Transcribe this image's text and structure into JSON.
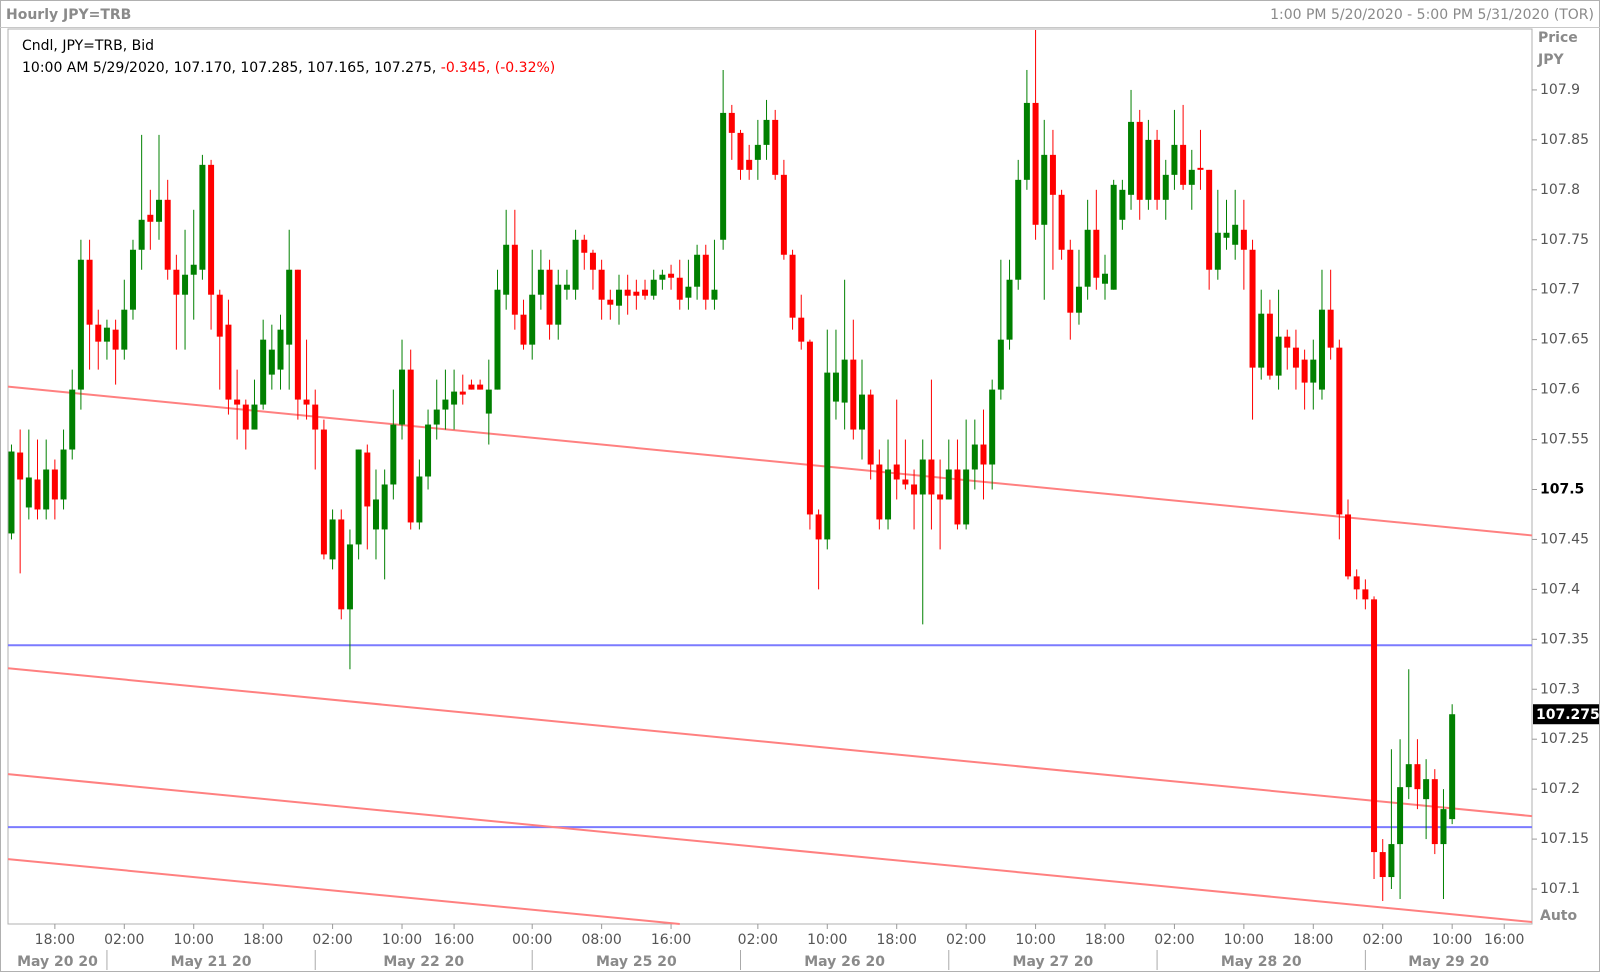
{
  "chart_data": {
    "type": "candlestick",
    "title": "Hourly JPY=TRB",
    "range_label": "1:00 PM 5/20/2020 - 5:00 PM 5/31/2020 (TOR)",
    "legend": {
      "line1": "Cndl, JPY=TRB, Bid",
      "line2": "10:00 AM 5/29/2020, 107.170, 107.285, 107.165, 107.275,",
      "change": "-0.345, (-0.32%)"
    },
    "y_label": "Price",
    "y_unit": "JPY",
    "scale_mode": "Auto",
    "up_color": "#008000",
    "down_color": "#ff0000",
    "open": [
      107.456,
      107.537,
      107.482,
      107.51,
      107.48,
      107.52,
      107.49,
      107.54,
      107.6,
      107.73,
      107.665,
      107.648,
      107.66,
      107.64,
      107.68,
      107.74,
      107.775,
      107.768,
      107.79,
      107.72,
      107.695,
      107.715,
      107.72,
      107.825,
      107.695,
      107.665,
      107.59,
      107.585,
      107.56,
      107.585,
      107.615,
      107.62,
      107.645,
      107.72,
      107.59,
      107.585,
      107.56,
      107.43,
      107.47,
      107.38,
      107.445,
      107.537,
      107.46,
      107.46,
      107.505,
      107.565,
      107.62,
      107.467,
      107.513,
      107.565,
      107.58,
      107.585,
      107.598,
      107.605,
      107.605,
      107.576,
      107.6,
      107.695,
      107.745,
      107.675,
      107.645,
      107.695,
      107.72,
      107.665,
      107.7,
      107.7,
      107.75,
      107.737,
      107.72,
      107.69,
      107.684,
      107.7,
      107.698,
      107.7,
      107.694,
      107.71,
      107.716,
      107.712,
      107.692,
      107.703,
      107.735,
      107.69,
      107.75,
      107.877,
      107.857,
      107.83,
      107.83,
      107.845,
      107.87,
      107.815,
      107.735,
      107.672,
      107.648,
      107.475,
      107.45,
      107.588,
      107.587,
      107.63,
      107.56,
      107.595,
      107.525,
      107.47,
      107.525,
      107.51,
      107.505,
      107.495,
      107.53,
      107.495,
      107.49,
      107.52,
      107.465,
      107.52,
      107.545,
      107.525,
      107.6,
      107.65,
      107.71,
      107.81,
      107.887,
      107.765,
      107.835,
      107.795,
      107.74,
      107.677,
      107.703,
      107.76,
      107.706,
      107.7,
      107.77,
      107.795,
      107.868,
      107.79,
      107.85,
      107.79,
      107.815,
      107.845,
      107.805,
      107.822,
      107.82,
      107.72,
      107.752,
      107.745,
      107.76,
      107.74,
      107.622,
      107.676,
      107.614,
      107.653,
      107.642,
      107.63,
      107.607,
      107.6,
      107.68,
      107.642,
      107.475,
      107.413,
      107.4,
      107.39,
      107.137,
      107.112,
      107.145,
      107.202,
      107.225,
      107.19,
      107.21,
      107.145,
      107.17
    ],
    "high": [
      107.545,
      107.56,
      107.56,
      107.55,
      107.55,
      107.53,
      107.56,
      107.62,
      107.75,
      107.75,
      107.68,
      107.67,
      107.67,
      107.71,
      107.75,
      107.855,
      107.8,
      107.855,
      107.81,
      107.735,
      107.76,
      107.78,
      107.835,
      107.83,
      107.7,
      107.69,
      107.62,
      107.59,
      107.61,
      107.67,
      107.665,
      107.675,
      107.76,
      107.72,
      107.65,
      107.6,
      107.57,
      107.48,
      107.48,
      107.46,
      107.54,
      107.545,
      107.52,
      107.52,
      107.6,
      107.65,
      107.64,
      107.53,
      107.58,
      107.61,
      107.62,
      107.62,
      107.615,
      107.61,
      107.61,
      107.63,
      107.72,
      107.78,
      107.78,
      107.69,
      107.74,
      107.74,
      107.73,
      107.72,
      107.72,
      107.76,
      107.755,
      107.74,
      107.73,
      107.7,
      107.715,
      107.715,
      107.71,
      107.71,
      107.72,
      107.72,
      107.725,
      107.73,
      107.73,
      107.745,
      107.745,
      107.75,
      107.92,
      107.885,
      107.86,
      107.845,
      107.87,
      107.89,
      107.88,
      107.83,
      107.74,
      107.695,
      107.65,
      107.48,
      107.66,
      107.66,
      107.71,
      107.67,
      107.63,
      107.6,
      107.54,
      107.55,
      107.59,
      107.55,
      107.52,
      107.55,
      107.61,
      107.53,
      107.55,
      107.55,
      107.57,
      107.57,
      107.58,
      107.61,
      107.73,
      107.73,
      107.83,
      107.92,
      107.96,
      107.87,
      107.86,
      107.8,
      107.75,
      107.74,
      107.79,
      107.8,
      107.735,
      107.81,
      107.81,
      107.9,
      107.88,
      107.87,
      107.86,
      107.83,
      107.88,
      107.885,
      107.84,
      107.86,
      107.82,
      107.8,
      107.79,
      107.8,
      107.79,
      107.75,
      107.7,
      107.69,
      107.7,
      107.66,
      107.66,
      107.64,
      107.65,
      107.72,
      107.72,
      107.65,
      107.49,
      107.42,
      107.41,
      107.393,
      107.15,
      107.24,
      107.25,
      107.32,
      107.25,
      107.23,
      107.22,
      107.2,
      107.285
    ],
    "low": [
      107.45,
      107.416,
      107.47,
      107.47,
      107.47,
      107.47,
      107.48,
      107.53,
      107.58,
      107.62,
      107.62,
      107.63,
      107.605,
      107.63,
      107.67,
      107.72,
      107.74,
      107.75,
      107.71,
      107.64,
      107.64,
      107.67,
      107.71,
      107.66,
      107.6,
      107.575,
      107.55,
      107.54,
      107.56,
      107.58,
      107.6,
      107.6,
      107.6,
      107.57,
      107.57,
      107.52,
      107.43,
      107.42,
      107.37,
      107.32,
      107.43,
      107.44,
      107.43,
      107.41,
      107.49,
      107.55,
      107.46,
      107.46,
      107.5,
      107.55,
      107.56,
      107.56,
      107.585,
      107.6,
      107.6,
      107.545,
      107.6,
      107.68,
      107.66,
      107.64,
      107.63,
      107.68,
      107.65,
      107.65,
      107.69,
      107.69,
      107.72,
      107.7,
      107.67,
      107.67,
      107.665,
      107.675,
      107.68,
      107.69,
      107.69,
      107.7,
      107.7,
      107.68,
      107.68,
      107.69,
      107.68,
      107.68,
      107.74,
      107.83,
      107.81,
      107.81,
      107.81,
      107.83,
      107.81,
      107.73,
      107.66,
      107.64,
      107.46,
      107.4,
      107.44,
      107.57,
      107.56,
      107.55,
      107.53,
      107.51,
      107.46,
      107.46,
      107.49,
      107.5,
      107.46,
      107.365,
      107.46,
      107.44,
      107.49,
      107.46,
      107.46,
      107.5,
      107.49,
      107.5,
      107.59,
      107.64,
      107.7,
      107.8,
      107.75,
      107.69,
      107.72,
      107.73,
      107.65,
      107.665,
      107.69,
      107.7,
      107.69,
      107.7,
      107.76,
      107.78,
      107.77,
      107.78,
      107.78,
      107.77,
      107.8,
      107.8,
      107.78,
      107.8,
      107.7,
      107.71,
      107.74,
      107.73,
      107.7,
      107.57,
      107.61,
      107.61,
      107.6,
      107.62,
      107.6,
      107.58,
      107.58,
      107.59,
      107.63,
      107.45,
      107.41,
      107.39,
      107.38,
      107.11,
      107.088,
      107.1,
      107.09,
      107.19,
      107.18,
      107.15,
      107.135,
      107.09,
      107.165
    ],
    "close": [
      107.538,
      107.51,
      107.512,
      107.48,
      107.52,
      107.49,
      107.54,
      107.6,
      107.73,
      107.665,
      107.648,
      107.662,
      107.64,
      107.68,
      107.74,
      107.77,
      107.768,
      107.79,
      107.72,
      107.695,
      107.715,
      107.725,
      107.825,
      107.695,
      107.653,
      107.59,
      107.585,
      107.56,
      107.585,
      107.65,
      107.64,
      107.66,
      107.72,
      107.59,
      107.585,
      107.56,
      107.435,
      107.47,
      107.38,
      107.445,
      107.54,
      107.483,
      107.49,
      107.505,
      107.565,
      107.62,
      107.467,
      107.513,
      107.565,
      107.58,
      107.59,
      107.598,
      107.595,
      107.6,
      107.6,
      107.6,
      107.7,
      107.745,
      107.675,
      107.645,
      107.695,
      107.72,
      107.665,
      107.705,
      107.705,
      107.75,
      107.737,
      107.72,
      107.69,
      107.685,
      107.7,
      107.694,
      107.694,
      107.694,
      107.71,
      107.715,
      107.712,
      107.69,
      107.703,
      107.735,
      107.69,
      107.7,
      107.877,
      107.857,
      107.82,
      107.82,
      107.845,
      107.87,
      107.815,
      107.735,
      107.672,
      107.648,
      107.475,
      107.45,
      107.617,
      107.617,
      107.63,
      107.56,
      107.595,
      107.525,
      107.47,
      107.52,
      107.51,
      107.505,
      107.495,
      107.53,
      107.495,
      107.49,
      107.52,
      107.465,
      107.52,
      107.545,
      107.525,
      107.6,
      107.65,
      107.71,
      107.81,
      107.887,
      107.765,
      107.835,
      107.795,
      107.74,
      107.677,
      107.703,
      107.76,
      107.712,
      107.716,
      107.805,
      107.8,
      107.868,
      107.79,
      107.85,
      107.79,
      107.815,
      107.845,
      107.805,
      107.82,
      107.82,
      107.72,
      107.757,
      107.757,
      107.765,
      107.74,
      107.622,
      107.676,
      107.614,
      107.653,
      107.642,
      107.622,
      107.607,
      107.63,
      107.68,
      107.642,
      107.475,
      107.413,
      107.4,
      107.39,
      107.137,
      107.112,
      107.145,
      107.202,
      107.225,
      107.2,
      107.21,
      107.145,
      107.18,
      107.275
    ],
    "xlim": [
      -0.4,
      175.2
    ],
    "xticks": [
      {
        "value": 5,
        "label": "18:00"
      },
      {
        "value": 13,
        "label": "02:00"
      },
      {
        "value": 21,
        "label": "10:00"
      },
      {
        "value": 29,
        "label": "18:00"
      },
      {
        "value": 37,
        "label": "02:00"
      },
      {
        "value": 45,
        "label": "10:00"
      },
      {
        "value": 51,
        "label": "16:00"
      },
      {
        "value": 60,
        "label": "00:00"
      },
      {
        "value": 68,
        "label": "08:00"
      },
      {
        "value": 76,
        "label": "16:00"
      },
      {
        "value": 86,
        "label": "02:00"
      },
      {
        "value": 94,
        "label": "10:00"
      },
      {
        "value": 102,
        "label": "18:00"
      },
      {
        "value": 110,
        "label": "02:00"
      },
      {
        "value": 118,
        "label": "10:00"
      },
      {
        "value": 126,
        "label": "18:00"
      },
      {
        "value": 134,
        "label": "02:00"
      },
      {
        "value": 142,
        "label": "10:00"
      },
      {
        "value": 150,
        "label": "18:00"
      },
      {
        "value": 158,
        "label": "02:00"
      },
      {
        "value": 166,
        "label": "10:00"
      },
      {
        "value": 172,
        "label": "16:00"
      }
    ],
    "date_ticks": [
      {
        "value": -13,
        "label": "May 20 20"
      },
      {
        "value": 11,
        "label": "May 21 20"
      },
      {
        "value": 35,
        "label": "May 22 20"
      },
      {
        "value": 60,
        "label": "May 25 20"
      },
      {
        "value": 84,
        "label": "May 26 20"
      },
      {
        "value": 108,
        "label": "May 27 20"
      },
      {
        "value": 132,
        "label": "May 28 20"
      },
      {
        "value": 156,
        "label": "May 29 20"
      }
    ],
    "ylim": [
      107.065,
      107.961
    ],
    "yticks": [
      107.1,
      107.15,
      107.2,
      107.25,
      107.3,
      107.35,
      107.4,
      107.45,
      107.5,
      107.55,
      107.6,
      107.65,
      107.7,
      107.75,
      107.8,
      107.85,
      107.9
    ],
    "highlight_ytick": 107.5,
    "last_price": {
      "value": 107.275,
      "label": "107.275"
    },
    "hlines": [
      {
        "value": 107.344,
        "color": "#7b7bff"
      },
      {
        "value": 107.162,
        "color": "#7b7bff"
      }
    ],
    "trendlines": [
      {
        "x": [
          -0.4,
          175.2
        ],
        "y": [
          107.603,
          107.454
        ],
        "color": "#ff8080"
      },
      {
        "x": [
          -0.4,
          175.2
        ],
        "y": [
          107.321,
          107.173
        ],
        "color": "#ff8080"
      },
      {
        "x": [
          -0.4,
          175.2
        ],
        "y": [
          107.215,
          107.067
        ],
        "color": "#ff8080"
      },
      {
        "x": [
          -0.4,
          77
        ],
        "y": [
          107.13,
          107.065
        ],
        "color": "#ff8080"
      }
    ]
  }
}
